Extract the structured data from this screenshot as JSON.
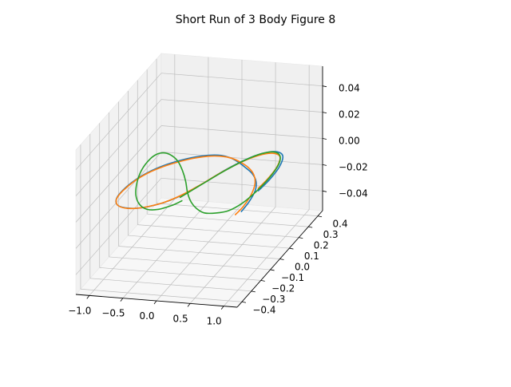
{
  "chart_data": {
    "type": "line",
    "projection": "3d",
    "title": "Short Run of 3 Body Figure 8",
    "xlabel": "",
    "ylabel": "",
    "zlabel": "",
    "xlim": [
      -1.2,
      1.2
    ],
    "ylim": [
      -0.45,
      0.45
    ],
    "zlim": [
      -0.055,
      0.055
    ],
    "x_ticks": [
      -1.0,
      -0.5,
      0.0,
      0.5,
      1.0
    ],
    "x_tick_labels": [
      "−1.0",
      "−0.5",
      "0.0",
      "0.5",
      "1.0"
    ],
    "y_ticks": [
      -0.4,
      -0.3,
      -0.2,
      -0.1,
      0.0,
      0.1,
      0.2,
      0.3,
      0.4
    ],
    "y_tick_labels": [
      "−0.4",
      "−0.3",
      "−0.2",
      "−0.1",
      "0.0",
      "0.1",
      "0.2",
      "0.3",
      "0.4"
    ],
    "z_ticks": [
      -0.04,
      -0.02,
      0.0,
      0.02,
      0.04
    ],
    "z_tick_labels": [
      "−0.04",
      "−0.02",
      "0.00",
      "0.02",
      "0.04"
    ],
    "grid": true,
    "legend": false,
    "series": [
      {
        "color": "#1f77b4",
        "x": [
          0.97,
          0.958,
          0.906,
          0.8,
          0.651,
          0.482,
          0.317,
          0.161,
          0.003,
          -0.166,
          -0.343,
          -0.513,
          -0.674,
          -0.804,
          -0.894,
          -0.94,
          -0.924,
          -0.831,
          -0.694,
          -0.532,
          -0.371,
          -0.209,
          -0.054,
          0.097,
          0.236,
          0.391,
          0.549,
          0.711,
          0.859,
          0.948,
          0.97,
          0.95
        ],
        "y": [
          -0.243,
          -0.156,
          -0.052,
          0.032,
          0.096,
          0.144,
          0.186,
          0.217,
          0.232,
          0.226,
          0.2,
          0.159,
          0.105,
          0.037,
          -0.042,
          -0.141,
          -0.218,
          -0.272,
          -0.29,
          -0.287,
          -0.261,
          -0.214,
          -0.137,
          -0.018,
          0.109,
          0.212,
          0.279,
          0.303,
          0.272,
          0.174,
          0.052,
          -0.05
        ],
        "z": [
          0,
          0,
          0,
          0,
          0,
          0,
          0,
          0,
          0,
          0,
          0,
          0,
          0,
          0,
          0,
          0,
          0,
          0,
          0,
          0,
          0,
          0,
          0,
          0,
          0,
          0,
          0,
          0,
          0,
          0,
          0,
          0
        ]
      },
      {
        "color": "#ff7f0e",
        "x": [
          0.925,
          0.934,
          0.898,
          0.812,
          0.678,
          0.516,
          0.348,
          0.18,
          0.006,
          -0.171,
          -0.351,
          -0.515,
          -0.671,
          -0.798,
          -0.888,
          -0.934,
          -0.918,
          -0.831,
          -0.701,
          -0.546,
          -0.389,
          -0.229,
          -0.073,
          0.081,
          0.221,
          0.374,
          0.526,
          0.685,
          0.826,
          0.91,
          0.935,
          0.92
        ],
        "y": [
          -0.274,
          -0.196,
          -0.087,
          0.013,
          0.092,
          0.148,
          0.187,
          0.215,
          0.225,
          0.216,
          0.188,
          0.146,
          0.094,
          0.031,
          -0.046,
          -0.145,
          -0.222,
          -0.272,
          -0.292,
          -0.289,
          -0.264,
          -0.22,
          -0.146,
          -0.03,
          0.093,
          0.194,
          0.26,
          0.286,
          0.264,
          0.182,
          0.07,
          -0.03
        ],
        "z": [
          0,
          0,
          0,
          0,
          0,
          0,
          0,
          0,
          0,
          0,
          0,
          0,
          0,
          0,
          0,
          0,
          0,
          0,
          0,
          0,
          0,
          0,
          0,
          0,
          0,
          0,
          0,
          0,
          0,
          0,
          0,
          0
        ]
      },
      {
        "color": "#2ca02c",
        "x": [
          -0.055,
          0.09,
          0.236,
          0.386,
          0.536,
          0.686,
          0.82,
          0.91,
          0.944,
          0.93,
          0.88,
          0.782,
          0.636,
          0.47,
          0.302,
          0.146,
          -0.01,
          -0.176,
          -0.354,
          -0.523,
          -0.684,
          -0.812,
          -0.902,
          -0.946,
          -0.93,
          -0.836,
          -0.696,
          -0.53,
          -0.366,
          -0.206,
          -0.066,
          0.01
        ],
        "y": [
          -0.161,
          -0.03,
          0.1,
          0.206,
          0.274,
          0.299,
          0.27,
          0.191,
          0.073,
          -0.057,
          -0.169,
          -0.244,
          -0.273,
          -0.28,
          -0.245,
          -0.191,
          -0.116,
          -0.018,
          0.074,
          0.148,
          0.196,
          0.215,
          0.202,
          0.151,
          0.055,
          -0.064,
          -0.174,
          -0.252,
          -0.289,
          -0.28,
          -0.235,
          -0.19
        ],
        "z": [
          0,
          0,
          0,
          0,
          0,
          0,
          0,
          0,
          0,
          0,
          0,
          0,
          0,
          0,
          0,
          0,
          0,
          0,
          0,
          0,
          0,
          0,
          0,
          0,
          0,
          0,
          0,
          0,
          0,
          0,
          0,
          0
        ]
      }
    ]
  }
}
